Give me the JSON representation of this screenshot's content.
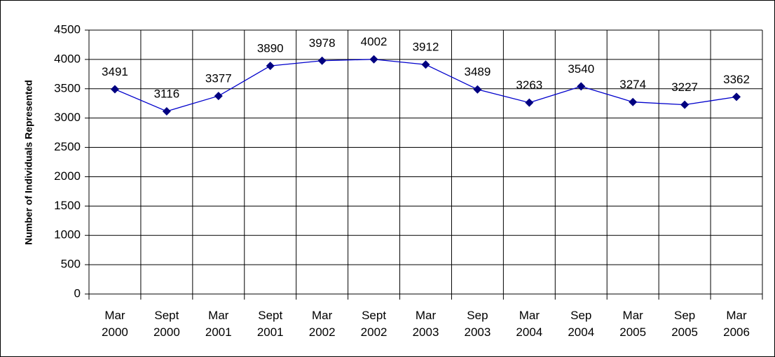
{
  "chart_data": {
    "type": "line",
    "y_label": "Number of Individuals Represented",
    "categories": [
      "Mar 2000",
      "Sept 2000",
      "Mar 2001",
      "Sept 2001",
      "Mar 2002",
      "Sept 2002",
      "Mar 2003",
      "Sep 2003",
      "Mar 2004",
      "Sep 2004",
      "Mar 2005",
      "Sep 2005",
      "Mar 2006"
    ],
    "series": [
      {
        "color": "#0000cc",
        "values": [
          3491,
          3116,
          3377,
          3890,
          3978,
          4002,
          3912,
          3489,
          3263,
          3540,
          3274,
          3227,
          3362
        ]
      }
    ],
    "ylim": [
      0,
      4500
    ],
    "yticks": [
      0,
      500,
      1000,
      1500,
      2000,
      2500,
      3000,
      3500,
      4000,
      4500
    ],
    "grid": true
  }
}
